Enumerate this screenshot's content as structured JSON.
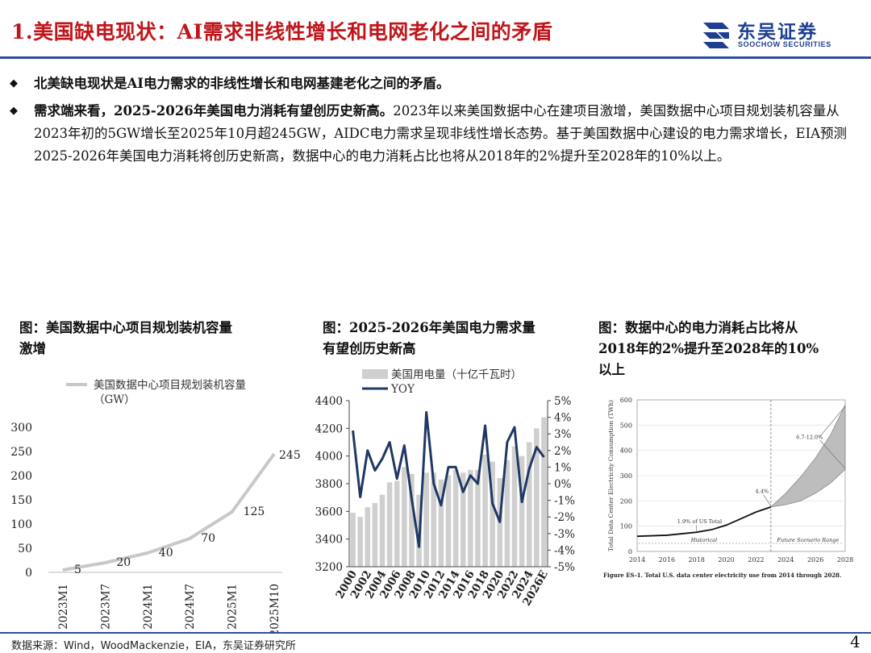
{
  "header": {
    "title": "1.美国缺电现状：AI需求非线性增长和电网老化之间的矛盾",
    "logo_cn": "东吴证券",
    "logo_en": "SOOCHOW SECURITIES"
  },
  "bullets": [
    {
      "bold": "北美缺电现状是AI电力需求的非线性增长和电网基建老化之间的矛盾。",
      "text": ""
    },
    {
      "bold": "需求端来看，2025-2026年美国电力消耗有望创历史新高。",
      "text": "2023年以来美国数据中心在建项目激增，美国数据中心项目规划装机容量从2023年初的5GW增长至2025年10月超245GW，AIDC电力需求呈现非线性增长态势。基于美国数据中心建设的电力需求增长，EIA预测2025-2026年美国电力消耗将创历史新高，数据中心的电力消耗占比也将从2018年的2%提升至2028年的10%以上。"
    }
  ],
  "charts": {
    "c1_title_l1": "图：美国数据中心项目规划装机容量",
    "c1_title_l2": "激增",
    "c2_title_l1": "图：2025-2026年美国电力需求量",
    "c2_title_l2": "有望创历史新高",
    "c3_title_l1": "图：数据中心的电力消耗占比将从",
    "c3_title_l2": "2018年的2%提升至2028年的10%",
    "c3_title_l3": "以上"
  },
  "chart_data": [
    {
      "type": "line",
      "legend": [
        "美国数据中心项目规划装机容量",
        "（GW）"
      ],
      "categories": [
        "2023M1",
        "2023M7",
        "2024M1",
        "2024M7",
        "2025M1",
        "2025M10"
      ],
      "values": [
        5,
        20,
        40,
        70,
        125,
        245
      ],
      "yticks": [
        0,
        50,
        100,
        150,
        200,
        250,
        300
      ],
      "ylim": [
        0,
        300
      ],
      "color": "#c8c8c8"
    },
    {
      "type": "bar",
      "legend": [
        "美国用电量（十亿千瓦时）",
        "YOY"
      ],
      "categories": [
        "2000",
        "2001",
        "2002",
        "2003",
        "2004",
        "2005",
        "2006",
        "2007",
        "2008",
        "2009",
        "2010",
        "2011",
        "2012",
        "2013",
        "2014",
        "2015",
        "2016",
        "2017",
        "2018",
        "2019",
        "2020",
        "2021",
        "2022",
        "2023",
        "2024",
        "2025E",
        "2026E"
      ],
      "xtick_labels": [
        "2000",
        "2002",
        "2004",
        "2006",
        "2008",
        "2010",
        "2012",
        "2014",
        "2016",
        "2018",
        "2020",
        "2022",
        "2024",
        "2026E"
      ],
      "series": [
        {
          "name": "美国用电量（十亿千瓦时）",
          "axis": "left",
          "values": [
            3590,
            3560,
            3630,
            3660,
            3720,
            3810,
            3820,
            3920,
            3870,
            3720,
            3880,
            3880,
            3830,
            3860,
            3900,
            3880,
            3900,
            3900,
            4010,
            3960,
            3840,
            3970,
            4070,
            4000,
            4100,
            4200,
            4280
          ]
        },
        {
          "name": "YOY",
          "axis": "right",
          "values": [
            3.2,
            -0.8,
            2.0,
            0.8,
            1.5,
            2.5,
            0.3,
            2.3,
            -0.9,
            -3.8,
            4.3,
            0.0,
            -1.3,
            1.0,
            1.0,
            -0.5,
            0.5,
            0.0,
            3.5,
            -1.2,
            -2.3,
            2.5,
            3.4,
            -1.1,
            0.9,
            2.2,
            1.6
          ]
        }
      ],
      "yticks_left": [
        3200,
        3400,
        3600,
        3800,
        4000,
        4200,
        4400
      ],
      "ylim_left": [
        3200,
        4400
      ],
      "yticks_right": [
        "5%",
        "4%",
        "3%",
        "2%",
        "1%",
        "0%",
        "-1%",
        "-2%",
        "-3%",
        "-4%",
        "-5%"
      ],
      "ylim_right": [
        -5,
        5
      ],
      "bar_color": "#cfcfcf",
      "line_color": "#1f3864"
    },
    {
      "type": "area",
      "ylabel": "Total Data Center Electricity Consumption (TWh)",
      "xticks": [
        2014,
        2016,
        2018,
        2020,
        2022,
        2024,
        2026,
        2028
      ],
      "yticks": [
        0,
        100,
        200,
        300,
        400,
        500,
        600
      ],
      "xlim": [
        2014,
        2028
      ],
      "ylim": [
        0,
        600
      ],
      "historical": {
        "x": [
          2014,
          2016,
          2018,
          2019,
          2020,
          2021,
          2022,
          2023
        ],
        "y": [
          60,
          64,
          76,
          86,
          104,
          130,
          156,
          176
        ]
      },
      "scenario_upper": {
        "x": [
          2023,
          2024,
          2025,
          2026,
          2027,
          2028
        ],
        "y": [
          176,
          230,
          295,
          370,
          460,
          580
        ]
      },
      "scenario_lower": {
        "x": [
          2023,
          2024,
          2025,
          2026,
          2027,
          2028
        ],
        "y": [
          176,
          185,
          200,
          230,
          270,
          325
        ]
      },
      "annotations": [
        "1.9% of US Total",
        "4.4%",
        "6.7-12.0%"
      ],
      "range_labels": [
        "Historical",
        "Future Scenario Range"
      ],
      "caption": "Figure ES-1. Total U.S. data center electricity use from 2014 through 2028."
    }
  ],
  "footer": {
    "source": "数据来源：Wind，WoodMackenzie，EIA，东吴证券研究所",
    "page": "4"
  }
}
